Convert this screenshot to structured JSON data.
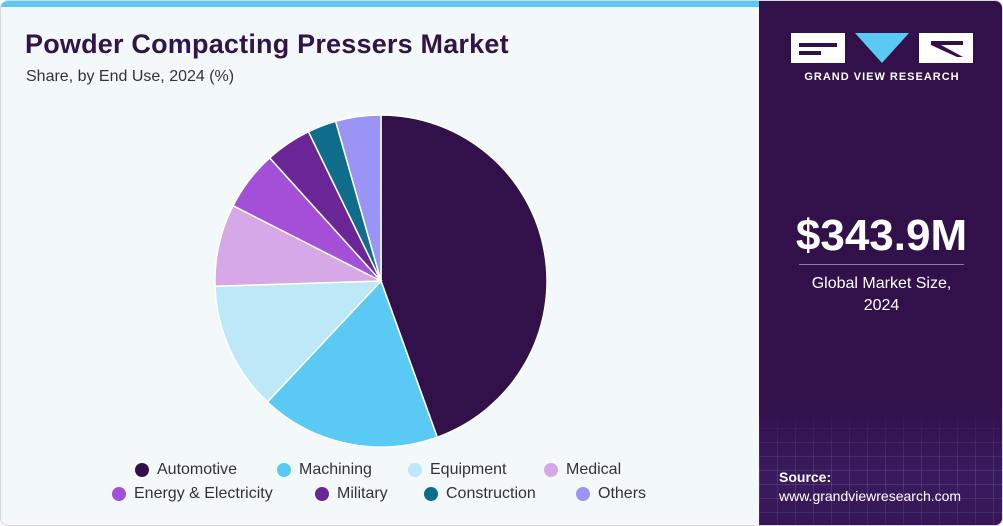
{
  "header": {
    "title": "Powder Compacting Pressers Market",
    "subtitle": "Share, by End Use, 2024 (%)"
  },
  "chart_data": {
    "type": "pie",
    "title": "Powder Compacting Pressers Market",
    "subtitle": "Share, by End Use, 2024 (%)",
    "categories": [
      "Automotive",
      "Machining",
      "Equipment",
      "Medical",
      "Energy & Electricity",
      "Military",
      "Construction",
      "Others"
    ],
    "values": [
      44.5,
      17.5,
      12.5,
      8.0,
      5.8,
      4.5,
      2.8,
      4.4
    ],
    "colors": [
      "#32114a",
      "#5ac9f3",
      "#bde8f7",
      "#d7a8e8",
      "#a44fd8",
      "#6a2597",
      "#0f6d8c",
      "#9b94f7"
    ],
    "legend_position": "bottom"
  },
  "sidebar": {
    "brand": "GRAND VIEW RESEARCH",
    "market_size": "$343.9M",
    "market_size_label_line1": "Global Market Size,",
    "market_size_label_line2": "2024",
    "source_label": "Source:",
    "source_url": "www.grandviewresearch.com"
  }
}
